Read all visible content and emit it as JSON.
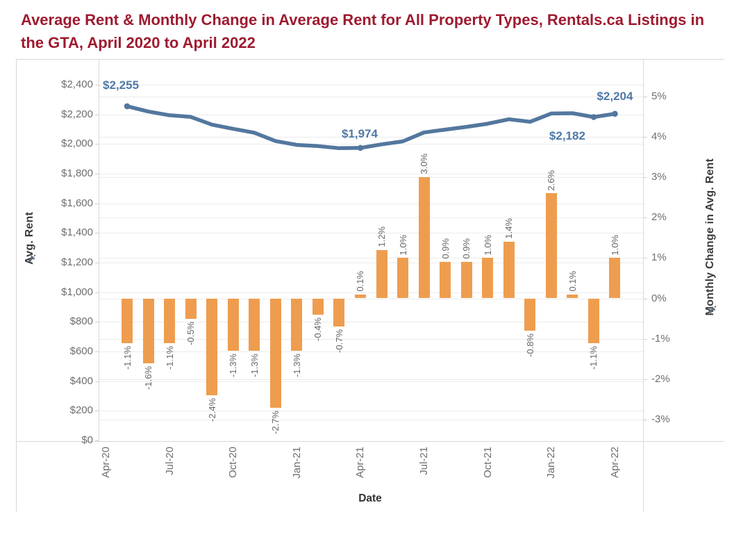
{
  "title": "Average Rent & Monthly Change in Average Rent for All Property Types, Rentals.ca Listings in the GTA, April 2020 to April 2022",
  "chart_data": {
    "type": "combo-dual-axis (line + bar)",
    "x_axis": {
      "title": "Date",
      "tick_labels": [
        "Apr-20",
        "Jul-20",
        "Oct-20",
        "Jan-21",
        "Apr-21",
        "Jul-21",
        "Oct-21",
        "Jan-22",
        "Apr-22"
      ]
    },
    "left_axis": {
      "title": "Avg. Rent",
      "pinned_icon": "pushpin-icon",
      "tick_labels": [
        "$2,400",
        "$2,200",
        "$2,000",
        "$1,800",
        "$1,600",
        "$1,400",
        "$1,200",
        "$1,000",
        "$800",
        "$600",
        "$400",
        "$200",
        "$0"
      ],
      "min": 0,
      "max": 2400
    },
    "right_axis": {
      "title": "Monthly Change in Avg. Rent",
      "pinned_icon": "pushpin-icon",
      "tick_labels": [
        "5%",
        "4%",
        "3%",
        "2%",
        "1%",
        "0%",
        "-1%",
        "-2%",
        "-3%"
      ],
      "min": -3,
      "max": 5
    },
    "months": [
      "May-20",
      "Jun-20",
      "Jul-20",
      "Aug-20",
      "Sep-20",
      "Oct-20",
      "Nov-20",
      "Dec-20",
      "Jan-21",
      "Feb-21",
      "Mar-21",
      "Apr-21",
      "May-21",
      "Jun-21",
      "Jul-21",
      "Aug-21",
      "Sep-21",
      "Oct-21",
      "Nov-21",
      "Dec-21",
      "Jan-22",
      "Feb-22",
      "Mar-22",
      "Apr-22"
    ],
    "series": [
      {
        "name": "Avg. Rent",
        "type": "line",
        "color": "#53779E",
        "values": [
          2255,
          2219,
          2194,
          2183,
          2131,
          2103,
          2076,
          2020,
          1994,
          1986,
          1972,
          1974,
          1998,
          2018,
          2078,
          2097,
          2116,
          2137,
          2167,
          2150,
          2206,
          2208,
          2182,
          2204
        ]
      },
      {
        "name": "Monthly Change in Avg. Rent",
        "type": "bar",
        "color": "#EE9D4F",
        "values": [
          -1.1,
          -1.6,
          -1.1,
          -0.5,
          -2.4,
          -1.3,
          -1.3,
          -2.7,
          -1.3,
          -0.4,
          -0.7,
          0.1,
          1.2,
          1.0,
          3.0,
          0.9,
          0.9,
          1.0,
          1.4,
          -0.8,
          2.6,
          0.1,
          -1.1,
          1.0
        ],
        "bar_labels": [
          "-1.1%",
          "-1.6%",
          "-1.1%",
          "-0.5%",
          "-2.4%",
          "-1.3%",
          "-1.3%",
          "-2.7%",
          "-1.3%",
          "-0.4%",
          "-0.7%",
          "0.1%",
          "1.2%",
          "1.0%",
          "3.0%",
          "0.9%",
          "0.9%",
          "1.0%",
          "1.4%",
          "-0.8%",
          "2.6%",
          "0.1%",
          "-1.1%",
          "1.0%"
        ]
      }
    ],
    "annotations": [
      {
        "text": "$2,255",
        "month": "May-20",
        "value": 2255
      },
      {
        "text": "$1,974",
        "month": "Apr-21",
        "value": 1974
      },
      {
        "text": "$2,182",
        "month": "Mar-22",
        "value": 2182
      },
      {
        "text": "$2,204",
        "month": "Apr-22",
        "value": 2204
      }
    ],
    "grid": "both axes, light gray"
  }
}
